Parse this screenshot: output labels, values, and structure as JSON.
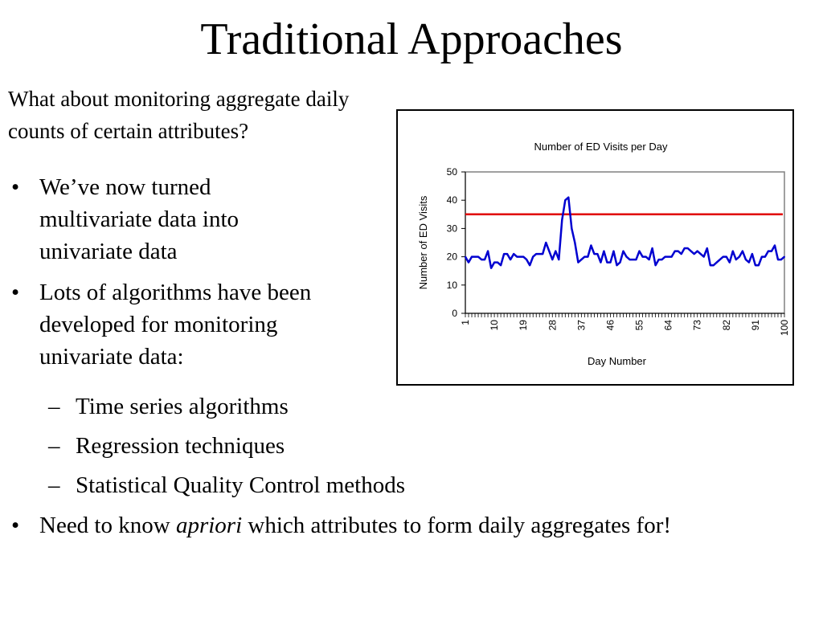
{
  "slide": {
    "title": "Traditional Approaches",
    "intro": "What about monitoring aggregate daily counts of certain attributes?",
    "bullets": [
      {
        "bullet": "•",
        "text": "We’ve now turned multivariate data into univariate data"
      },
      {
        "bullet": "•",
        "text": "Lots of algorithms have been developed for monitoring univariate data:"
      }
    ],
    "subbullets": [
      {
        "dash": "–",
        "text": "Time series algorithms"
      },
      {
        "dash": "–",
        "text": "Regression techniques"
      },
      {
        "dash": "–",
        "text": "Statistical Quality Control methods"
      }
    ],
    "last_bullet": {
      "bullet": "•",
      "pre": "Need to know ",
      "emph": "apriori",
      "post": " which attributes to form daily aggregates for!"
    }
  },
  "chart_data": {
    "type": "line",
    "title": "Number of ED Visits per Day",
    "xlabel": "Day Number",
    "ylabel": "Number of ED Visits",
    "ylim": [
      0,
      50
    ],
    "yticks": [
      "0",
      "10",
      "20",
      "30",
      "40",
      "50"
    ],
    "xticklabels": [
      "1",
      "10",
      "19",
      "28",
      "37",
      "46",
      "55",
      "64",
      "73",
      "82",
      "91",
      "100"
    ],
    "xtick_days": [
      1,
      10,
      19,
      28,
      37,
      46,
      55,
      64,
      73,
      82,
      91,
      100
    ],
    "xrange": [
      1,
      100
    ],
    "threshold": {
      "value": 35,
      "color": "#e00000"
    },
    "series": [
      {
        "color": "#0000d0",
        "x": [
          1,
          2,
          3,
          4,
          5,
          6,
          7,
          8,
          9,
          10,
          11,
          12,
          13,
          14,
          15,
          16,
          17,
          18,
          19,
          20,
          21,
          22,
          23,
          24,
          25,
          26,
          27,
          28,
          29,
          30,
          31,
          32,
          33,
          34,
          35,
          36,
          37,
          38,
          39,
          40,
          41,
          42,
          43,
          44,
          45,
          46,
          47,
          48,
          49,
          50,
          51,
          52,
          53,
          54,
          55,
          56,
          57,
          58,
          59,
          60,
          61,
          62,
          63,
          64,
          65,
          66,
          67,
          68,
          69,
          70,
          71,
          72,
          73,
          74,
          75,
          76,
          77,
          78,
          79,
          80,
          81,
          82,
          83,
          84,
          85,
          86,
          87,
          88,
          89,
          90,
          91,
          92,
          93,
          94,
          95,
          96,
          97,
          98,
          99,
          100
        ],
        "values": [
          20,
          18,
          20,
          20,
          20,
          19,
          19,
          22,
          16,
          18,
          18,
          17,
          21,
          21,
          19,
          21,
          20,
          20,
          20,
          19,
          17,
          20,
          21,
          21,
          21,
          25,
          22,
          19,
          22,
          19,
          33,
          40,
          41,
          30,
          25,
          18,
          19,
          20,
          20,
          24,
          21,
          21,
          18,
          22,
          18,
          18,
          22,
          17,
          18,
          22,
          20,
          19,
          19,
          19,
          22,
          20,
          20,
          19,
          23,
          17,
          19,
          19,
          20,
          20,
          20,
          22,
          22,
          21,
          23,
          23,
          22,
          21,
          22,
          21,
          20,
          23,
          17,
          17,
          18,
          19,
          20,
          20,
          18,
          22,
          19,
          20,
          22,
          19,
          18,
          21,
          17,
          17,
          20,
          20,
          22,
          22,
          24,
          19,
          19,
          20
        ]
      }
    ],
    "grid": false,
    "legend": "none"
  }
}
